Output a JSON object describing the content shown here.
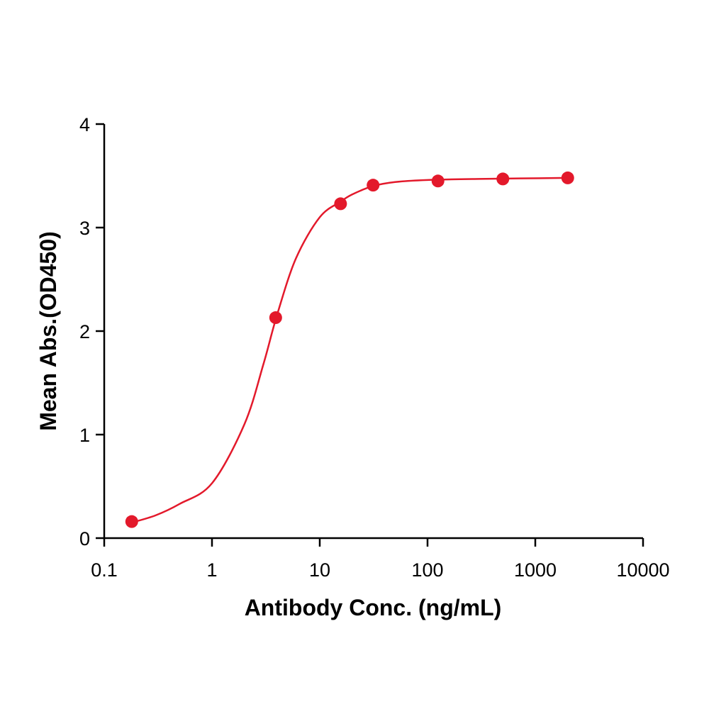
{
  "chart_data": {
    "type": "scatter",
    "x_label": "Antibody Conc. (ng/mL)",
    "y_label": "Mean Abs.(OD450)",
    "x": [
      0.18,
      3.9,
      15.6,
      31.25,
      125,
      500,
      2000
    ],
    "values": [
      0.16,
      2.13,
      3.23,
      3.41,
      3.45,
      3.47,
      3.48
    ],
    "color": "#e3192b",
    "fit": {
      "x": [
        0.18,
        0.3,
        0.5,
        1,
        2,
        3,
        4,
        6,
        10,
        15.6,
        20,
        31,
        50,
        100,
        300,
        2000
      ],
      "values": [
        0.15,
        0.22,
        0.33,
        0.53,
        1.1,
        1.68,
        2.15,
        2.7,
        3.1,
        3.25,
        3.32,
        3.4,
        3.44,
        3.46,
        3.47,
        3.48
      ]
    },
    "x_log": true,
    "xlim": [
      0.1,
      10000
    ],
    "xticks": [
      0.1,
      1,
      10,
      100,
      1000,
      10000
    ],
    "ylim": [
      0,
      4
    ],
    "yticks": [
      0,
      1,
      2,
      3,
      4
    ],
    "grid": false
  }
}
